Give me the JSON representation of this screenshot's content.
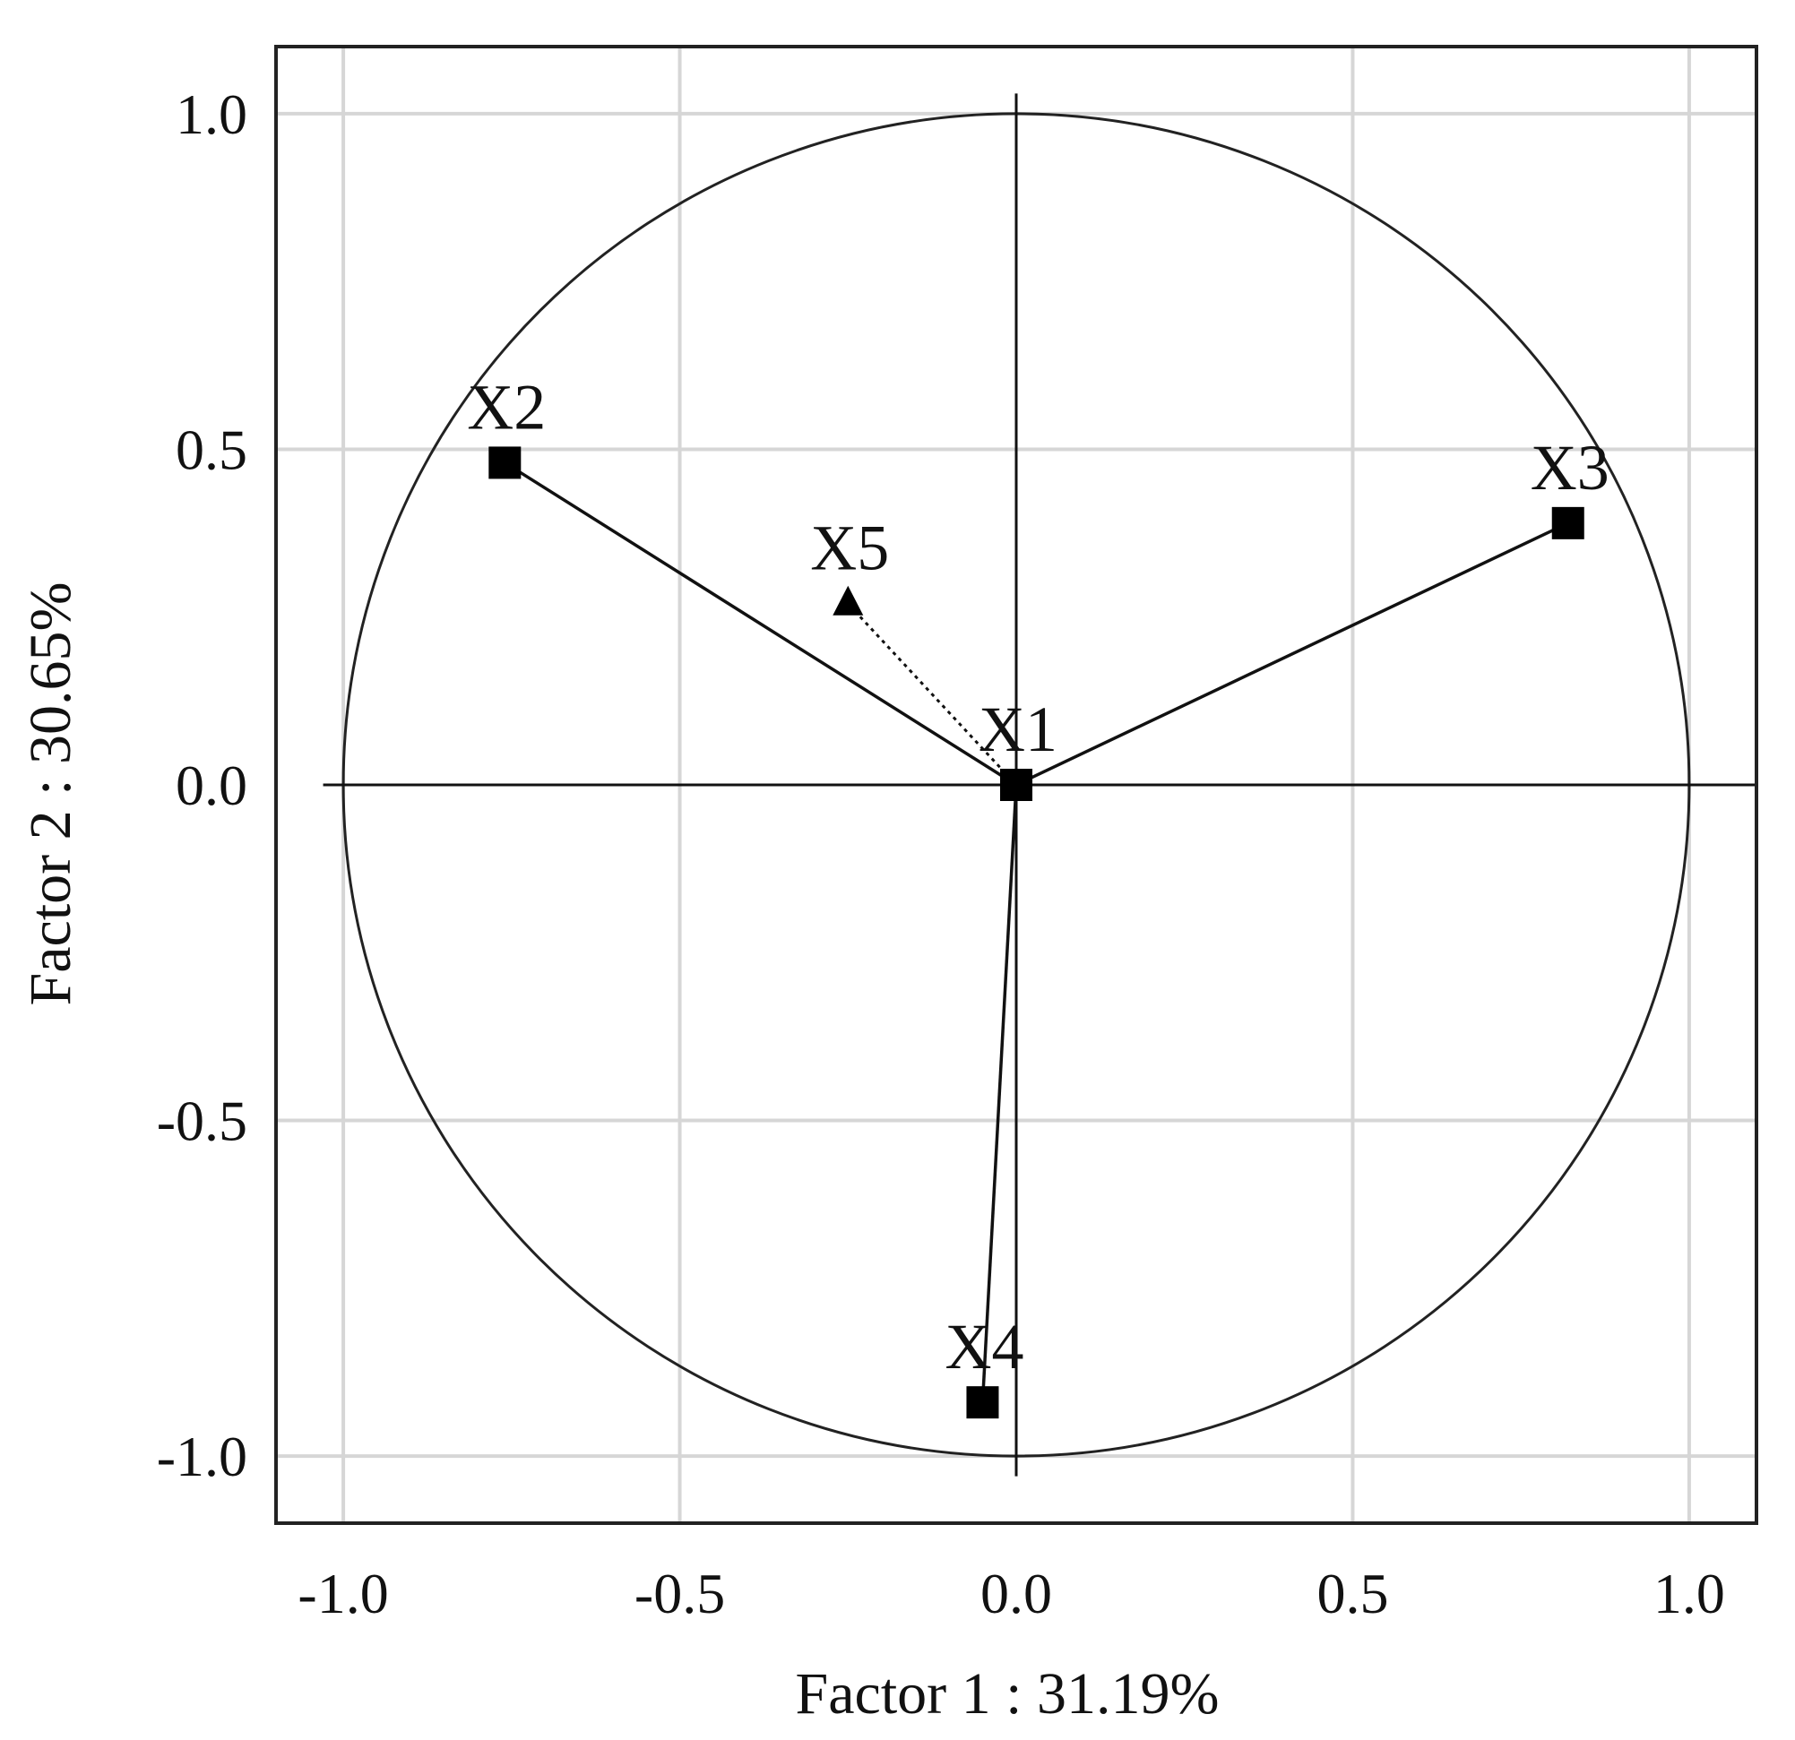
{
  "chart_data": {
    "type": "scatter",
    "xlabel": "Factor 1 : 31.19%",
    "ylabel": "Factor 2 : 30.65%",
    "xlim": [
      -1.1,
      1.1
    ],
    "ylim": [
      -1.1,
      1.1
    ],
    "x_ticks": [
      "-1.0",
      "-0.5",
      "0.0",
      "0.5",
      "1.0"
    ],
    "y_ticks": [
      "1.0",
      "0.5",
      "0.0",
      "-0.5",
      "-1.0"
    ],
    "x_tick_values": [
      -1.0,
      -0.5,
      0.0,
      0.5,
      1.0
    ],
    "y_tick_values": [
      1.0,
      0.5,
      0.0,
      -0.5,
      -1.0
    ],
    "grid": true,
    "unit_circle": true,
    "points": [
      {
        "label": "X1",
        "x": 0.0,
        "y": 0.0,
        "marker": "square",
        "vector": "none"
      },
      {
        "label": "X2",
        "x": -0.76,
        "y": 0.48,
        "marker": "square",
        "vector": "solid"
      },
      {
        "label": "X3",
        "x": 0.82,
        "y": 0.39,
        "marker": "square",
        "vector": "solid"
      },
      {
        "label": "X4",
        "x": -0.05,
        "y": -0.92,
        "marker": "square",
        "vector": "solid"
      },
      {
        "label": "X5",
        "x": -0.25,
        "y": 0.27,
        "marker": "triangle",
        "vector": "dotted"
      }
    ]
  }
}
